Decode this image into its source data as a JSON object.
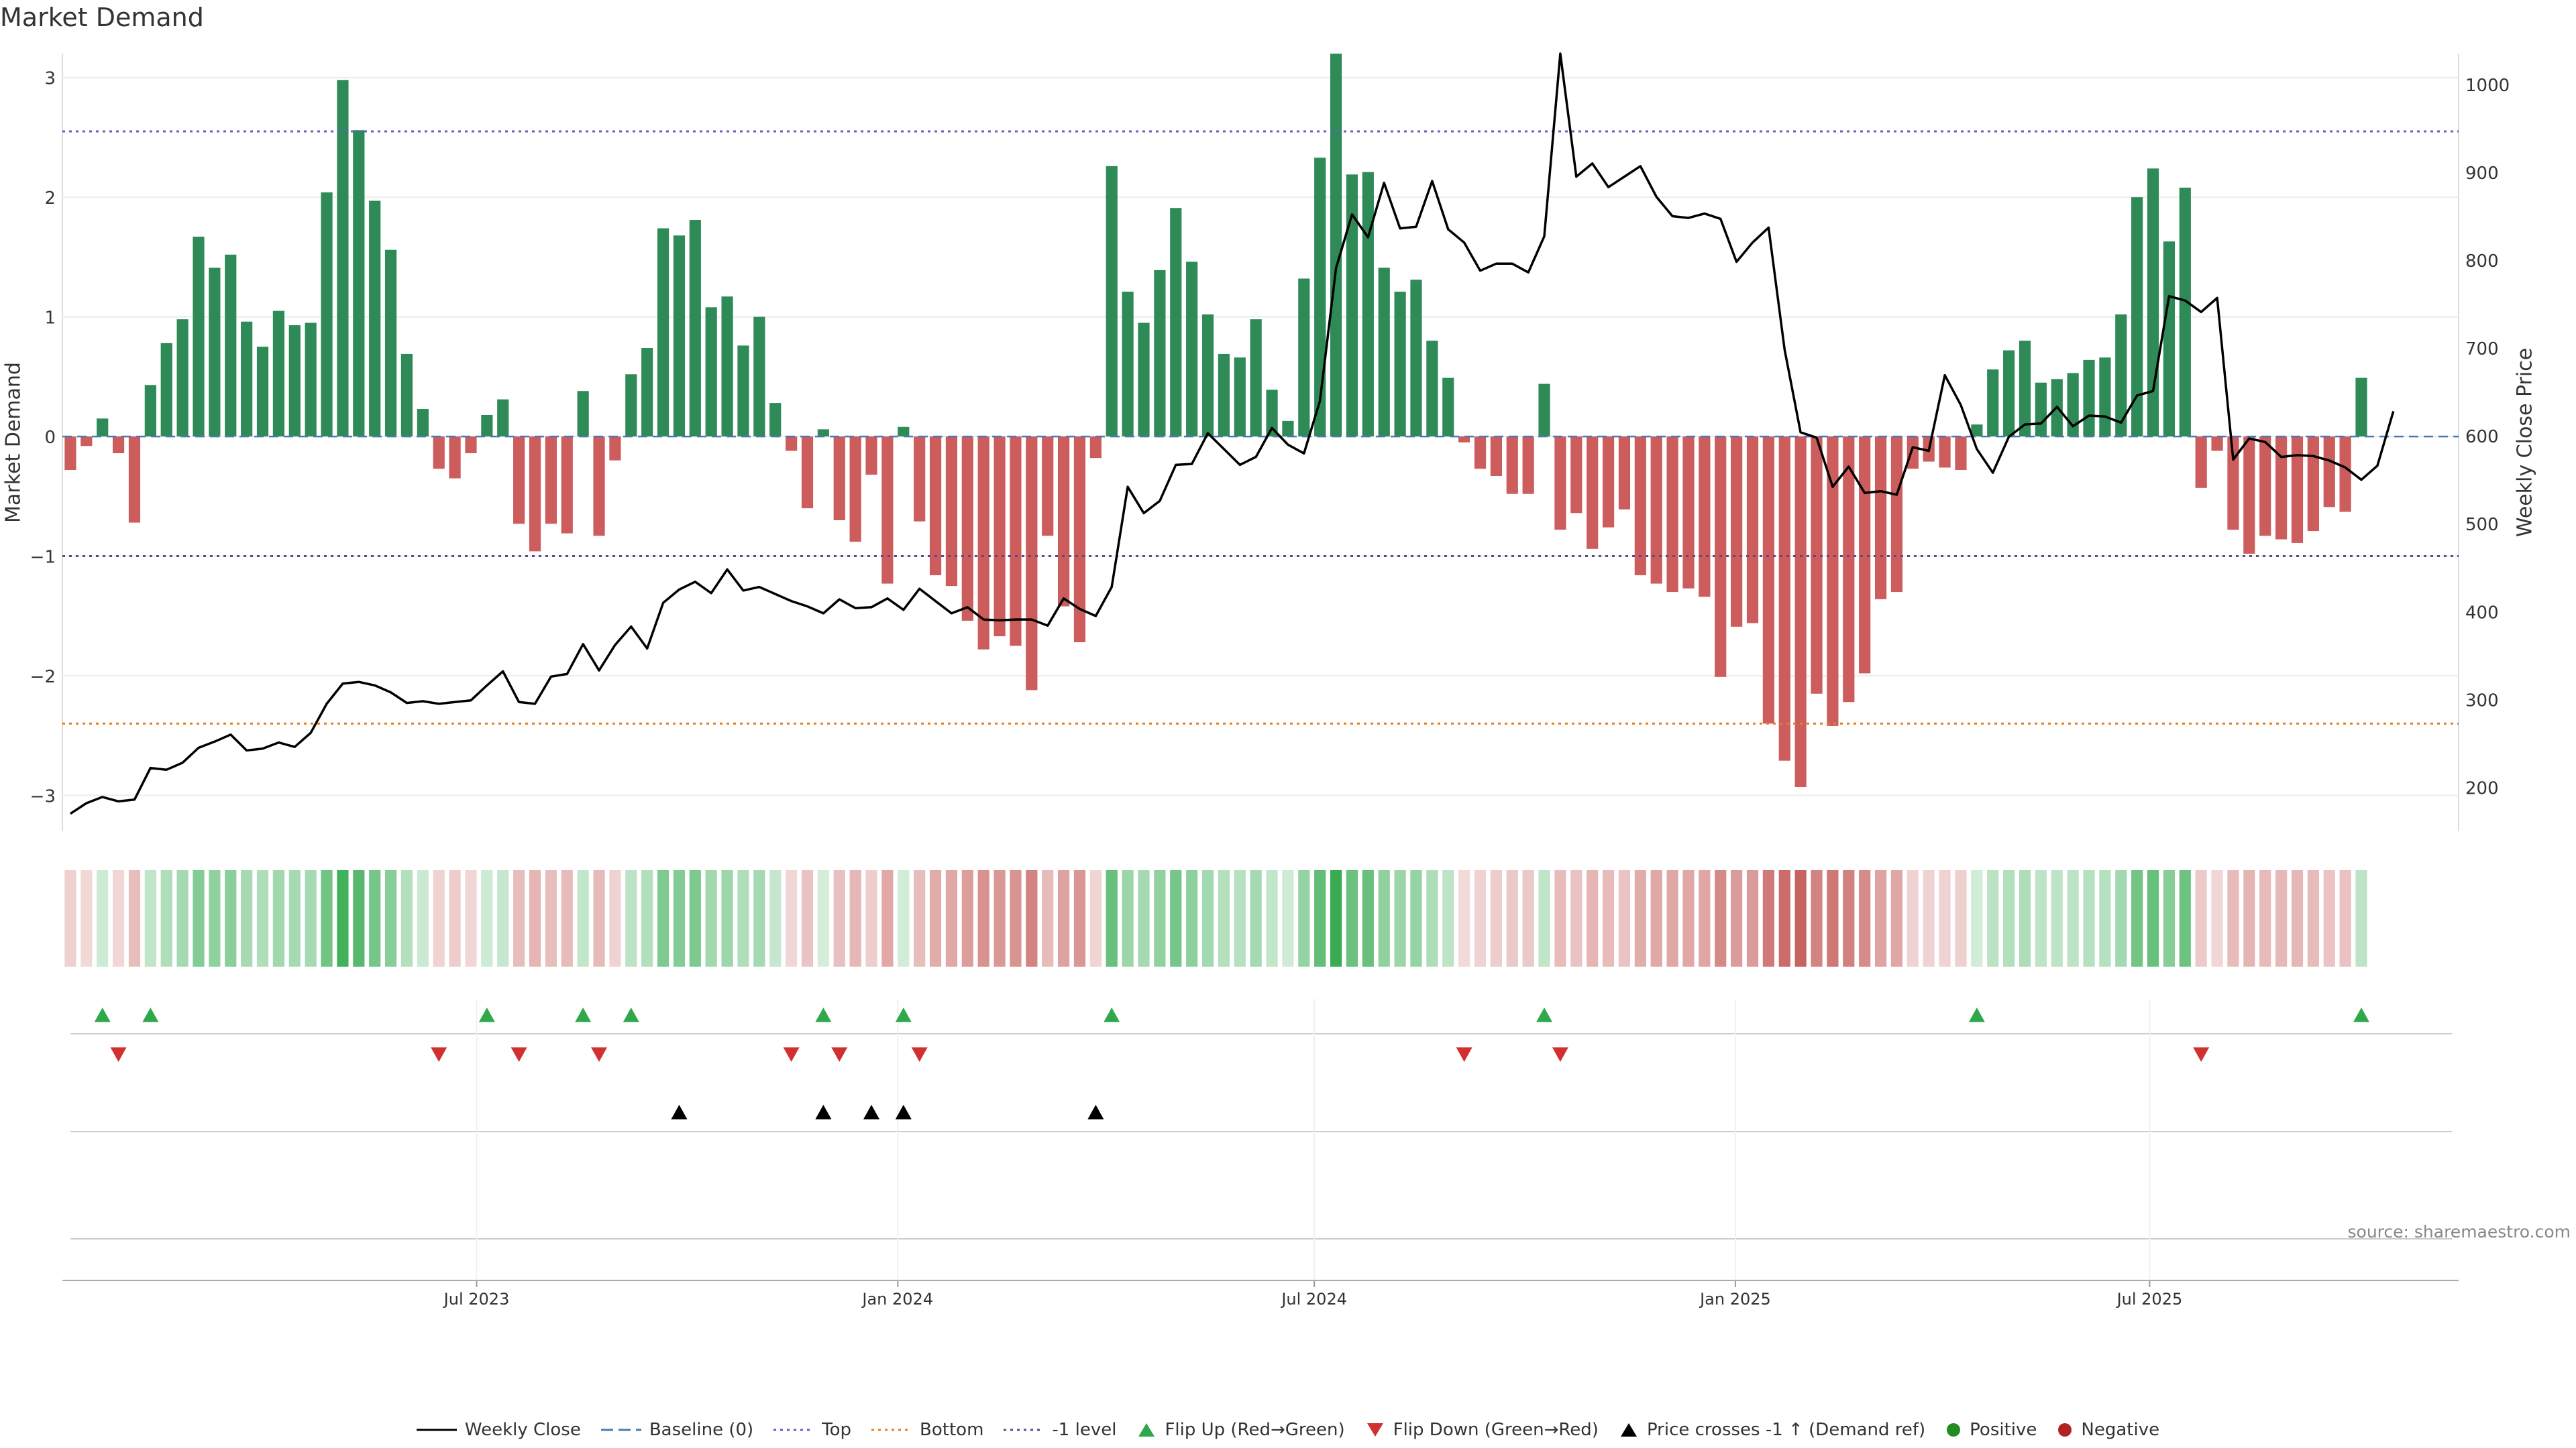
{
  "chart_data": {
    "type": "bar",
    "title": "Market Demand",
    "ylabel": "Market Demand",
    "y2label": "Weekly Close Price",
    "ylim": [
      -3.3,
      3.2
    ],
    "y2lim": [
      150,
      1035
    ],
    "yticks": [
      -3,
      -2,
      -1,
      0,
      1,
      2,
      3
    ],
    "ytick_labels": [
      "−3",
      "−2",
      "−1",
      "0",
      "1",
      "2",
      "3"
    ],
    "y2ticks": [
      200,
      300,
      400,
      500,
      600,
      700,
      800,
      900,
      1000
    ],
    "x_start": "2023-01-01",
    "x_end": "2025-11-13",
    "x_ticks": [
      {
        "date": "2023-07-01",
        "label": "Jul 2023"
      },
      {
        "date": "2024-01-01",
        "label": "Jan 2024"
      },
      {
        "date": "2024-07-01",
        "label": "Jul 2024"
      },
      {
        "date": "2025-01-01",
        "label": "Jan 2025"
      },
      {
        "date": "2025-07-01",
        "label": "Jul 2025"
      }
    ],
    "week_start": "2023-01-01",
    "week_step_days": 7,
    "reference_lines": [
      {
        "name": "Top",
        "value": 2.55,
        "color": "#6a5acd"
      },
      {
        "name": "Bottom",
        "value": -2.4,
        "color": "#e67e22"
      },
      {
        "name": "-1 level",
        "value": -1.0,
        "color": "#5a4a8c"
      }
    ],
    "demand": [
      -0.28,
      -0.08,
      0.15,
      -0.14,
      -0.72,
      0.43,
      0.78,
      0.98,
      1.67,
      1.41,
      1.52,
      0.96,
      0.75,
      1.05,
      0.93,
      0.95,
      2.04,
      2.98,
      2.56,
      1.97,
      1.56,
      0.69,
      0.23,
      -0.27,
      -0.35,
      -0.14,
      0.18,
      0.31,
      -0.73,
      -0.96,
      -0.73,
      -0.81,
      0.38,
      -0.83,
      -0.2,
      0.52,
      0.74,
      1.74,
      1.68,
      1.81,
      1.08,
      1.17,
      0.76,
      1.0,
      0.28,
      -0.12,
      -0.6,
      0.06,
      -0.7,
      -0.88,
      -0.32,
      -1.23,
      0.08,
      -0.71,
      -1.16,
      -1.25,
      -1.54,
      -1.78,
      -1.67,
      -1.75,
      -2.12,
      -0.83,
      -1.42,
      -1.72,
      -0.18,
      2.26,
      1.21,
      0.95,
      1.39,
      1.91,
      1.46,
      1.02,
      0.69,
      0.66,
      0.98,
      0.39,
      0.13,
      1.32,
      2.33,
      3.2,
      2.19,
      2.21,
      1.41,
      1.21,
      1.31,
      0.8,
      0.49,
      -0.05,
      -0.27,
      -0.33,
      -0.48,
      -0.48,
      0.44,
      -0.78,
      -0.64,
      -0.94,
      -0.76,
      -0.61,
      -1.16,
      -1.23,
      -1.3,
      -1.27,
      -1.34,
      -2.01,
      -1.59,
      -1.56,
      -2.4,
      -2.71,
      -2.93,
      -2.15,
      -2.42,
      -2.22,
      -1.98,
      -1.36,
      -1.3,
      -0.27,
      -0.21,
      -0.26,
      -0.28,
      0.1,
      0.56,
      0.72,
      0.8,
      0.45,
      0.48,
      0.53,
      0.64,
      0.66,
      1.02,
      2.0,
      2.24,
      1.63,
      2.08,
      -0.43,
      -0.12,
      -0.78,
      -0.98,
      -0.83,
      -0.86,
      -0.89,
      -0.79,
      -0.59,
      -0.63,
      0.49
    ],
    "close": [
      170,
      182,
      189,
      184,
      186,
      222,
      220,
      228,
      245,
      252,
      260,
      242,
      244,
      251,
      246,
      262,
      295,
      318,
      320,
      316,
      308,
      296,
      298,
      295,
      297,
      299,
      316,
      332,
      297,
      295,
      326,
      329,
      363,
      333,
      362,
      383,
      358,
      410,
      425,
      434,
      421,
      448,
      424,
      428,
      420,
      412,
      406,
      398,
      414,
      404,
      405,
      415,
      402,
      426,
      412,
      398,
      405,
      391,
      390,
      391,
      391,
      384,
      415,
      403,
      395,
      428,
      542,
      512,
      526,
      567,
      568,
      603,
      585,
      567,
      576,
      609,
      590,
      580,
      640,
      791,
      852,
      826,
      888,
      836,
      838,
      890,
      835,
      820,
      788,
      796,
      796,
      786,
      827,
      1035,
      895,
      910,
      883,
      895,
      907,
      872,
      850,
      848,
      853,
      847,
      798,
      820,
      837,
      698,
      604,
      598,
      542,
      565,
      535,
      537,
      533,
      587,
      583,
      669,
      635,
      585,
      558,
      599,
      613,
      614,
      633,
      611,
      623,
      622,
      615,
      646,
      651,
      759,
      754,
      741,
      757,
      573,
      597,
      593,
      576,
      578,
      577,
      572,
      564,
      550,
      566,
      628
    ],
    "flip_up_weeks": [
      2,
      5,
      26,
      32,
      35,
      47,
      52,
      65,
      92,
      119,
      143
    ],
    "flip_down_weeks": [
      3,
      23,
      28,
      33,
      45,
      48,
      53,
      87,
      93,
      133
    ],
    "cross_weeks": [
      38,
      47,
      50,
      52,
      64
    ],
    "colors": {
      "positive": "#2e8b57",
      "negative": "#cd5c5c",
      "flip_up": "#2ea84a",
      "flip_down": "#d23030",
      "price": "#000000",
      "baseline": "#4a78b5",
      "legend_positive": "#228b22",
      "legend_negative": "#b22222"
    }
  },
  "source_text": "source: sharemaestro.com",
  "legend": {
    "weekly_close": "Weekly Close",
    "baseline": "Baseline (0)",
    "top": "Top",
    "bottom": "Bottom",
    "minus1": "-1 level",
    "flip_up": "Flip Up (Red→Green)",
    "flip_down": "Flip Down (Green→Red)",
    "cross": "Price crosses -1 ↑ (Demand ref)",
    "positive": "Positive",
    "negative": "Negative"
  }
}
